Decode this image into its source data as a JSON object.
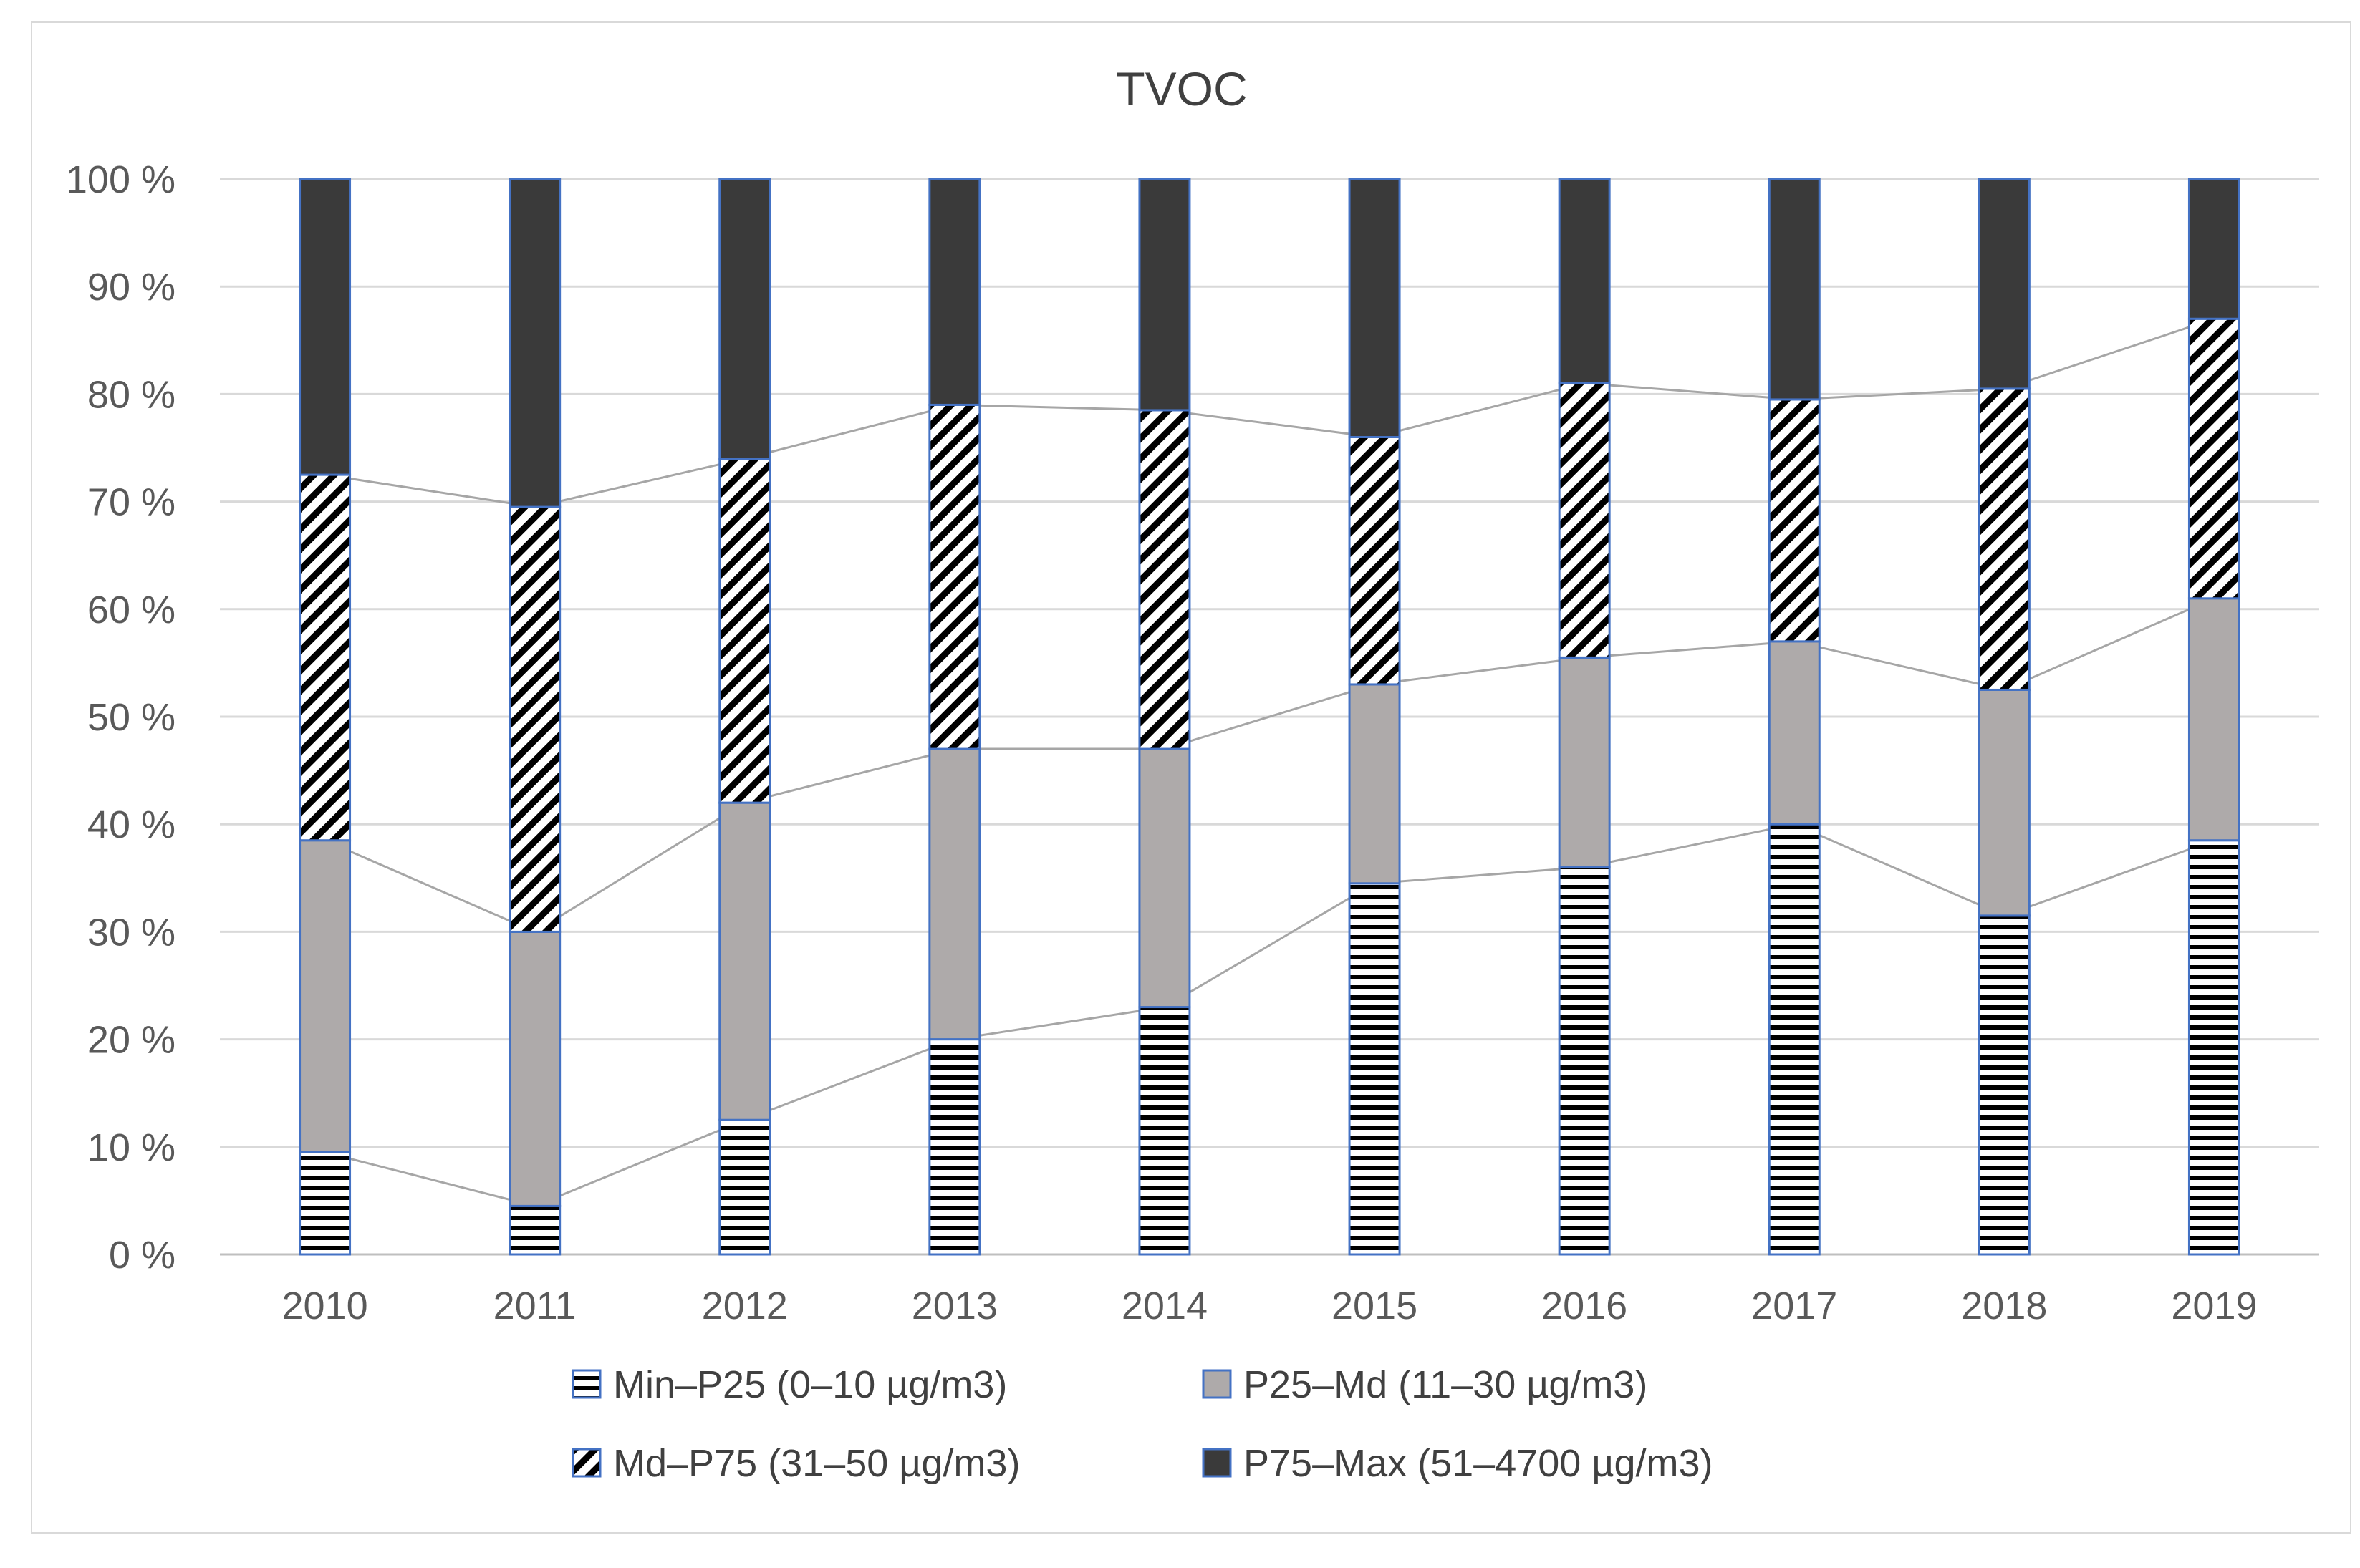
{
  "chart_data": {
    "type": "bar",
    "stacked": true,
    "title": "TVOC",
    "xlabel": "",
    "ylabel": "",
    "categories": [
      "2010",
      "2011",
      "2012",
      "2013",
      "2014",
      "2015",
      "2016",
      "2017",
      "2018",
      "2019"
    ],
    "ylim": [
      0,
      100
    ],
    "yticks": [
      "0 %",
      "10 %",
      "20 %",
      "30 %",
      "40 %",
      "50 %",
      "60 %",
      "70 %",
      "80 %",
      "90 %",
      "100 %"
    ],
    "grid": true,
    "legend_position": "bottom",
    "series_lines": true,
    "series": [
      {
        "name": "Min–P25 (0–10 µg/m3)",
        "pattern": "horizontal-lines",
        "color": "#000000",
        "values": [
          9.5,
          4.5,
          12.5,
          20.0,
          23.0,
          34.5,
          36.0,
          40.0,
          31.5,
          38.5
        ]
      },
      {
        "name": "P25–Md (11–30 µg/m3)",
        "pattern": "solid",
        "color": "#aeaaaa",
        "values": [
          29.0,
          25.5,
          29.5,
          27.0,
          24.0,
          18.5,
          19.5,
          17.0,
          21.0,
          22.5
        ]
      },
      {
        "name": "Md–P75 (31–50 µg/m3)",
        "pattern": "diagonal-lines",
        "color": "#000000",
        "values": [
          34.0,
          39.5,
          32.0,
          32.0,
          31.5,
          23.0,
          25.5,
          22.5,
          28.0,
          26.0
        ]
      },
      {
        "name": "P75–Max (51–4700 µg/m3)",
        "pattern": "solid",
        "color": "#3a3a3a",
        "values": [
          27.5,
          30.5,
          26.0,
          21.0,
          21.5,
          24.0,
          19.0,
          20.5,
          19.5,
          13.0
        ]
      }
    ],
    "colors": {
      "bar_border": "#4472c4",
      "grid": "#d9d9d9",
      "series_line": "#a6a6a6",
      "axis": "#bfbfbf"
    }
  }
}
